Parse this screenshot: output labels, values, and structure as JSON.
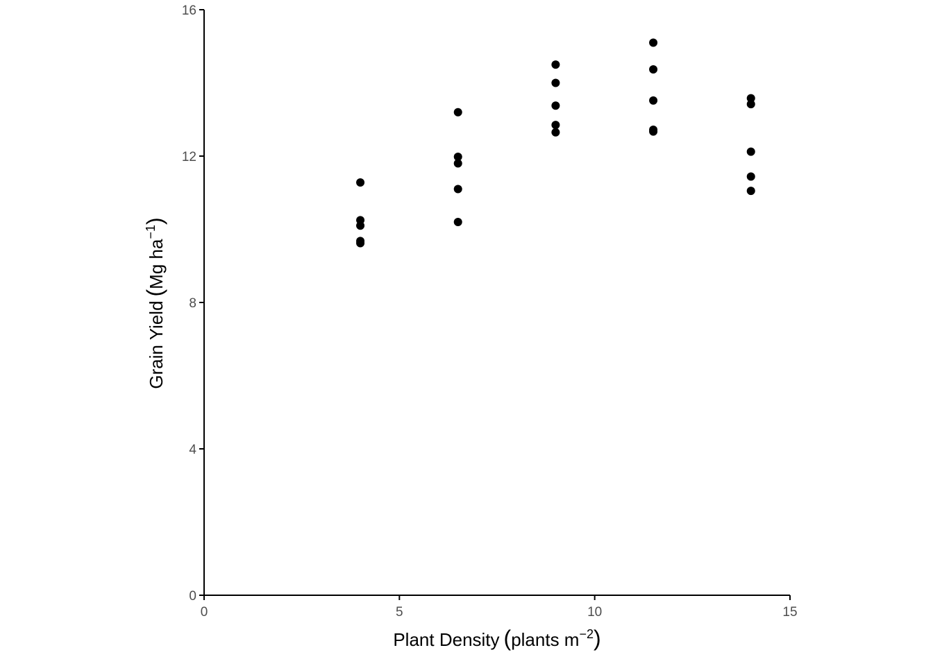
{
  "chart_data": {
    "type": "scatter",
    "title": "",
    "xlabel": {
      "main": "Plant Density",
      "unit": "plants m",
      "exponent": "−2"
    },
    "ylabel": {
      "main": "Grain Yield",
      "unit": "Mg ha",
      "exponent": "−1"
    },
    "xlim": [
      0,
      15
    ],
    "ylim": [
      0,
      16
    ],
    "xticks": [
      0,
      5,
      10,
      15
    ],
    "yticks": [
      0,
      4,
      8,
      12,
      16
    ],
    "grid": false,
    "legend": "none",
    "point_color": "#000000",
    "series": [
      {
        "points": [
          [
            4,
            11.28
          ],
          [
            4,
            10.25
          ],
          [
            4,
            10.1
          ],
          [
            4,
            9.68
          ],
          [
            4,
            9.62
          ],
          [
            6.5,
            13.2
          ],
          [
            6.5,
            11.98
          ],
          [
            6.5,
            11.8
          ],
          [
            6.5,
            11.1
          ],
          [
            6.5,
            10.2
          ],
          [
            9,
            14.5
          ],
          [
            9,
            14.0
          ],
          [
            9,
            13.38
          ],
          [
            9,
            12.85
          ],
          [
            9,
            12.65
          ],
          [
            11.5,
            15.1
          ],
          [
            11.5,
            14.37
          ],
          [
            11.5,
            13.52
          ],
          [
            11.5,
            12.72
          ],
          [
            11.5,
            12.67
          ],
          [
            14,
            13.58
          ],
          [
            14,
            13.42
          ],
          [
            14,
            12.12
          ],
          [
            14,
            11.44
          ],
          [
            14,
            11.05
          ]
        ]
      }
    ]
  }
}
